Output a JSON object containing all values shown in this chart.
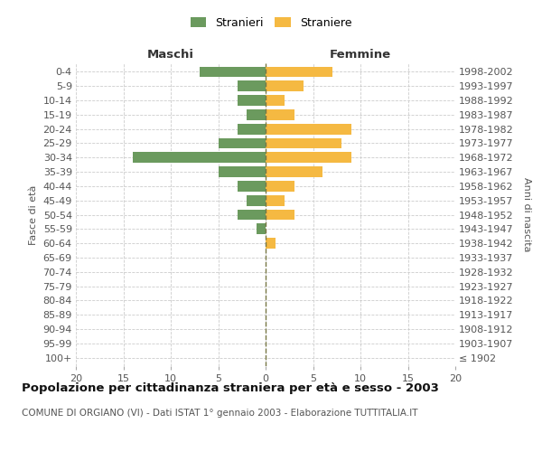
{
  "age_groups": [
    "100+",
    "95-99",
    "90-94",
    "85-89",
    "80-84",
    "75-79",
    "70-74",
    "65-69",
    "60-64",
    "55-59",
    "50-54",
    "45-49",
    "40-44",
    "35-39",
    "30-34",
    "25-29",
    "20-24",
    "15-19",
    "10-14",
    "5-9",
    "0-4"
  ],
  "birth_years": [
    "≤ 1902",
    "1903-1907",
    "1908-1912",
    "1913-1917",
    "1918-1922",
    "1923-1927",
    "1928-1932",
    "1933-1937",
    "1938-1942",
    "1943-1947",
    "1948-1952",
    "1953-1957",
    "1958-1962",
    "1963-1967",
    "1968-1972",
    "1973-1977",
    "1978-1982",
    "1983-1987",
    "1988-1992",
    "1993-1997",
    "1998-2002"
  ],
  "males": [
    0,
    0,
    0,
    0,
    0,
    0,
    0,
    0,
    0,
    1,
    3,
    2,
    3,
    5,
    14,
    5,
    3,
    2,
    3,
    3,
    7
  ],
  "females": [
    0,
    0,
    0,
    0,
    0,
    0,
    0,
    0,
    1,
    0,
    3,
    2,
    3,
    6,
    9,
    8,
    9,
    3,
    2,
    4,
    7
  ],
  "male_color": "#6b9a5e",
  "female_color": "#f5b942",
  "title": "Popolazione per cittadinanza straniera per età e sesso - 2003",
  "subtitle": "COMUNE DI ORGIANO (VI) - Dati ISTAT 1° gennaio 2003 - Elaborazione TUTTITALIA.IT",
  "label_maschi": "Maschi",
  "label_femmine": "Femmine",
  "ylabel_left": "Fasce di età",
  "ylabel_right": "Anni di nascita",
  "xlim": 20,
  "legend_stranieri": "Stranieri",
  "legend_straniere": "Straniere",
  "grid_color": "#cccccc",
  "bar_height": 0.75,
  "title_fontsize": 9.5,
  "subtitle_fontsize": 7.5,
  "tick_fontsize": 8,
  "label_fontsize": 8,
  "legend_fontsize": 9
}
